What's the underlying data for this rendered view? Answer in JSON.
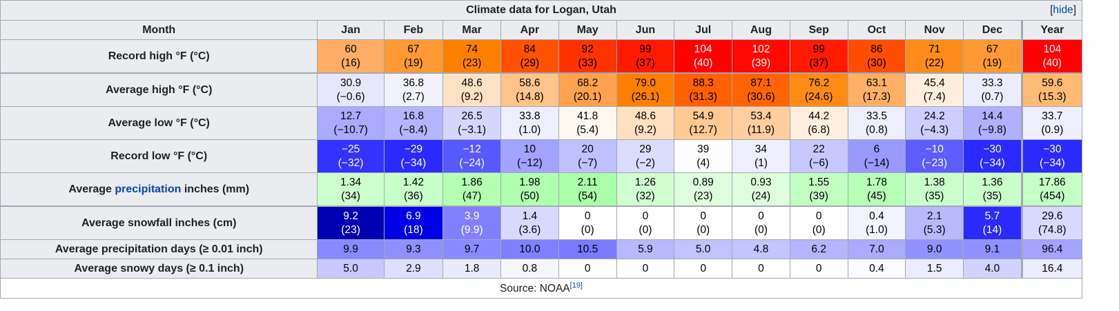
{
  "caption": "Climate data for Logan, Utah",
  "hide_link": "hide",
  "header": {
    "month_label": "Month",
    "months": [
      "Jan",
      "Feb",
      "Mar",
      "Apr",
      "May",
      "Jun",
      "Jul",
      "Aug",
      "Sep",
      "Oct",
      "Nov",
      "Dec"
    ],
    "year": "Year"
  },
  "rows": [
    {
      "label": "Record high °F (°C)",
      "cells": [
        {
          "a": "60",
          "b": "(16)",
          "bg": "#ffad66",
          "fg": "#000000"
        },
        {
          "a": "67",
          "b": "(19)",
          "bg": "#ff9933",
          "fg": "#000000"
        },
        {
          "a": "74",
          "b": "(23)",
          "bg": "#ff8000",
          "fg": "#000000"
        },
        {
          "a": "84",
          "b": "(29)",
          "bg": "#ff5200",
          "fg": "#000000"
        },
        {
          "a": "92",
          "b": "(33)",
          "bg": "#ff3300",
          "fg": "#000000"
        },
        {
          "a": "99",
          "b": "(37)",
          "bg": "#ff1a00",
          "fg": "#000000"
        },
        {
          "a": "104",
          "b": "(40)",
          "bg": "#ff0000",
          "fg": "#ffffff"
        },
        {
          "a": "102",
          "b": "(39)",
          "bg": "#ff0a00",
          "fg": "#ffffff"
        },
        {
          "a": "99",
          "b": "(37)",
          "bg": "#ff1a00",
          "fg": "#000000"
        },
        {
          "a": "86",
          "b": "(30)",
          "bg": "#ff4d00",
          "fg": "#000000"
        },
        {
          "a": "71",
          "b": "(22)",
          "bg": "#ff8c1a",
          "fg": "#000000"
        },
        {
          "a": "67",
          "b": "(19)",
          "bg": "#ff9933",
          "fg": "#000000"
        }
      ],
      "year": {
        "a": "104",
        "b": "(40)",
        "bg": "#ff0000",
        "fg": "#ffffff"
      }
    },
    {
      "label": "Average high °F (°C)",
      "cells": [
        {
          "a": "30.9",
          "b": "(−0.6)",
          "bg": "#e6e6ff",
          "fg": "#000000"
        },
        {
          "a": "36.8",
          "b": "(2.7)",
          "bg": "#f2f2ff",
          "fg": "#000000"
        },
        {
          "a": "48.6",
          "b": "(9.2)",
          "bg": "#ffe2c4",
          "fg": "#000000"
        },
        {
          "a": "58.6",
          "b": "(14.8)",
          "bg": "#ffc48a",
          "fg": "#000000"
        },
        {
          "a": "68.2",
          "b": "(20.1)",
          "bg": "#ffa24d",
          "fg": "#000000"
        },
        {
          "a": "79.0",
          "b": "(26.1)",
          "bg": "#ff8000",
          "fg": "#000000"
        },
        {
          "a": "88.3",
          "b": "(31.3)",
          "bg": "#ff6000",
          "fg": "#000000"
        },
        {
          "a": "87.1",
          "b": "(30.6)",
          "bg": "#ff6400",
          "fg": "#000000"
        },
        {
          "a": "76.2",
          "b": "(24.6)",
          "bg": "#ff8a14",
          "fg": "#000000"
        },
        {
          "a": "63.1",
          "b": "(17.3)",
          "bg": "#ffb066",
          "fg": "#000000"
        },
        {
          "a": "45.4",
          "b": "(7.4)",
          "bg": "#ffeedd",
          "fg": "#000000"
        },
        {
          "a": "33.3",
          "b": "(0.7)",
          "bg": "#ececff",
          "fg": "#000000"
        }
      ],
      "year": {
        "a": "59.6",
        "b": "(15.3)",
        "bg": "#ffba73",
        "fg": "#000000"
      }
    },
    {
      "label": "Average low °F (°C)",
      "cells": [
        {
          "a": "12.7",
          "b": "(−10.7)",
          "bg": "#aaaaff",
          "fg": "#000000"
        },
        {
          "a": "16.8",
          "b": "(−8.4)",
          "bg": "#b5b5ff",
          "fg": "#000000"
        },
        {
          "a": "26.5",
          "b": "(−3.1)",
          "bg": "#d5d5ff",
          "fg": "#000000"
        },
        {
          "a": "33.8",
          "b": "(1.0)",
          "bg": "#eeeeff",
          "fg": "#000000"
        },
        {
          "a": "41.8",
          "b": "(5.4)",
          "bg": "#fff8f1",
          "fg": "#000000"
        },
        {
          "a": "48.6",
          "b": "(9.2)",
          "bg": "#ffe0c0",
          "fg": "#000000"
        },
        {
          "a": "54.9",
          "b": "(12.7)",
          "bg": "#ffc994",
          "fg": "#000000"
        },
        {
          "a": "53.4",
          "b": "(11.9)",
          "bg": "#ffce9e",
          "fg": "#000000"
        },
        {
          "a": "44.2",
          "b": "(6.8)",
          "bg": "#ffefdf",
          "fg": "#000000"
        },
        {
          "a": "33.5",
          "b": "(0.8)",
          "bg": "#eeeeff",
          "fg": "#000000"
        },
        {
          "a": "24.2",
          "b": "(−4.3)",
          "bg": "#cdcdff",
          "fg": "#000000"
        },
        {
          "a": "14.4",
          "b": "(−9.8)",
          "bg": "#b0b0ff",
          "fg": "#000000"
        }
      ],
      "year": {
        "a": "33.7",
        "b": "(0.9)",
        "bg": "#eeeeff",
        "fg": "#000000"
      }
    },
    {
      "label": "Record low °F (°C)",
      "cells": [
        {
          "a": "−25",
          "b": "(−32)",
          "bg": "#3333ff",
          "fg": "#ffffff"
        },
        {
          "a": "−29",
          "b": "(−34)",
          "bg": "#2a2aff",
          "fg": "#ffffff"
        },
        {
          "a": "−12",
          "b": "(−24)",
          "bg": "#5858ff",
          "fg": "#ffffff"
        },
        {
          "a": "10",
          "b": "(−12)",
          "bg": "#a2a2ff",
          "fg": "#000000"
        },
        {
          "a": "20",
          "b": "(−7)",
          "bg": "#c0c0ff",
          "fg": "#000000"
        },
        {
          "a": "29",
          "b": "(−2)",
          "bg": "#dcdcff",
          "fg": "#000000"
        },
        {
          "a": "39",
          "b": "(4)",
          "bg": "#fcfcff",
          "fg": "#000000"
        },
        {
          "a": "34",
          "b": "(1)",
          "bg": "#eeeeff",
          "fg": "#000000"
        },
        {
          "a": "22",
          "b": "(−6)",
          "bg": "#c8c8ff",
          "fg": "#000000"
        },
        {
          "a": "6",
          "b": "(−14)",
          "bg": "#9999ff",
          "fg": "#000000"
        },
        {
          "a": "−10",
          "b": "(−23)",
          "bg": "#5c5cff",
          "fg": "#ffffff"
        },
        {
          "a": "−30",
          "b": "(−34)",
          "bg": "#2a2aff",
          "fg": "#ffffff"
        }
      ],
      "year": {
        "a": "−30",
        "b": "(−34)",
        "bg": "#2a2aff",
        "fg": "#ffffff"
      }
    },
    {
      "label_prefix": "Average ",
      "label_link": "precipitation",
      "label_suffix": " inches (mm)",
      "cells": [
        {
          "a": "1.34",
          "b": "(34)",
          "bg": "#ccffcc",
          "fg": "#000000"
        },
        {
          "a": "1.42",
          "b": "(36)",
          "bg": "#c8ffc8",
          "fg": "#000000"
        },
        {
          "a": "1.86",
          "b": "(47)",
          "bg": "#b5ffb5",
          "fg": "#000000"
        },
        {
          "a": "1.98",
          "b": "(50)",
          "bg": "#b0ffb0",
          "fg": "#000000"
        },
        {
          "a": "2.11",
          "b": "(54)",
          "bg": "#aaffaa",
          "fg": "#000000"
        },
        {
          "a": "1.26",
          "b": "(32)",
          "bg": "#d0ffd0",
          "fg": "#000000"
        },
        {
          "a": "0.89",
          "b": "(23)",
          "bg": "#ddffdd",
          "fg": "#000000"
        },
        {
          "a": "0.93",
          "b": "(24)",
          "bg": "#ddffdd",
          "fg": "#000000"
        },
        {
          "a": "1.55",
          "b": "(39)",
          "bg": "#c2ffc2",
          "fg": "#000000"
        },
        {
          "a": "1.78",
          "b": "(45)",
          "bg": "#b8ffb8",
          "fg": "#000000"
        },
        {
          "a": "1.38",
          "b": "(35)",
          "bg": "#caffca",
          "fg": "#000000"
        },
        {
          "a": "1.36",
          "b": "(35)",
          "bg": "#caffca",
          "fg": "#000000"
        }
      ],
      "year": {
        "a": "17.86",
        "b": "(454)",
        "bg": "#c4ffc4",
        "fg": "#000000"
      }
    },
    {
      "label": "Average snowfall inches (cm)",
      "cells": [
        {
          "a": "9.2",
          "b": "(23)",
          "bg": "#0000b3",
          "fg": "#ffffff"
        },
        {
          "a": "6.9",
          "b": "(18)",
          "bg": "#0000e6",
          "fg": "#ffffff"
        },
        {
          "a": "3.9",
          "b": "(9.9)",
          "bg": "#8080ff",
          "fg": "#ffffff"
        },
        {
          "a": "1.4",
          "b": "(3.6)",
          "bg": "#d9d9ff",
          "fg": "#000000"
        },
        {
          "a": "0",
          "b": "(0)",
          "bg": "#ffffff",
          "fg": "#000000"
        },
        {
          "a": "0",
          "b": "(0)",
          "bg": "#ffffff",
          "fg": "#000000"
        },
        {
          "a": "0",
          "b": "(0)",
          "bg": "#ffffff",
          "fg": "#000000"
        },
        {
          "a": "0",
          "b": "(0)",
          "bg": "#ffffff",
          "fg": "#000000"
        },
        {
          "a": "0",
          "b": "(0)",
          "bg": "#ffffff",
          "fg": "#000000"
        },
        {
          "a": "0.4",
          "b": "(1.0)",
          "bg": "#f4f4ff",
          "fg": "#000000"
        },
        {
          "a": "2.1",
          "b": "(5.3)",
          "bg": "#b8b8ff",
          "fg": "#000000"
        },
        {
          "a": "5.7",
          "b": "(14)",
          "bg": "#2a2aff",
          "fg": "#ffffff"
        }
      ],
      "year": {
        "a": "29.6",
        "b": "(74.8)",
        "bg": "#d9d9ff",
        "fg": "#000000"
      }
    },
    {
      "label": "Average precipitation days (≥ 0.01 inch)",
      "cells": [
        {
          "a": "9.9",
          "bg": "#8888ff",
          "fg": "#000000"
        },
        {
          "a": "9.3",
          "bg": "#8f8fff",
          "fg": "#000000"
        },
        {
          "a": "9.7",
          "bg": "#8a8aff",
          "fg": "#000000"
        },
        {
          "a": "10.0",
          "bg": "#8080ff",
          "fg": "#000000"
        },
        {
          "a": "10.5",
          "bg": "#7a7aff",
          "fg": "#000000"
        },
        {
          "a": "5.9",
          "bg": "#b8b8ff",
          "fg": "#000000"
        },
        {
          "a": "5.0",
          "bg": "#c2c2ff",
          "fg": "#000000"
        },
        {
          "a": "4.8",
          "bg": "#c4c4ff",
          "fg": "#000000"
        },
        {
          "a": "6.2",
          "bg": "#b4b4ff",
          "fg": "#000000"
        },
        {
          "a": "7.0",
          "bg": "#aaaaff",
          "fg": "#000000"
        },
        {
          "a": "9.0",
          "bg": "#9292ff",
          "fg": "#000000"
        },
        {
          "a": "9.1",
          "bg": "#9090ff",
          "fg": "#000000"
        }
      ],
      "year": {
        "a": "96.4",
        "bg": "#a4a4ff",
        "fg": "#000000"
      }
    },
    {
      "label": "Average snowy days (≥ 0.1 inch)",
      "cells": [
        {
          "a": "5.0",
          "bg": "#c8c8ff",
          "fg": "#000000"
        },
        {
          "a": "2.9",
          "bg": "#dedeff",
          "fg": "#000000"
        },
        {
          "a": "1.8",
          "bg": "#eaeaff",
          "fg": "#000000"
        },
        {
          "a": "0.8",
          "bg": "#f6f6ff",
          "fg": "#000000"
        },
        {
          "a": "0",
          "bg": "#ffffff",
          "fg": "#000000"
        },
        {
          "a": "0",
          "bg": "#ffffff",
          "fg": "#000000"
        },
        {
          "a": "0",
          "bg": "#ffffff",
          "fg": "#000000"
        },
        {
          "a": "0",
          "bg": "#ffffff",
          "fg": "#000000"
        },
        {
          "a": "0",
          "bg": "#ffffff",
          "fg": "#000000"
        },
        {
          "a": "0.4",
          "bg": "#fbfbff",
          "fg": "#000000"
        },
        {
          "a": "1.5",
          "bg": "#ececff",
          "fg": "#000000"
        },
        {
          "a": "4.0",
          "bg": "#d2d2ff",
          "fg": "#000000"
        }
      ],
      "year": {
        "a": "16.4",
        "bg": "#ececff",
        "fg": "#000000"
      }
    }
  ],
  "source": {
    "text": "Source: NOAA",
    "ref": "[19]"
  }
}
